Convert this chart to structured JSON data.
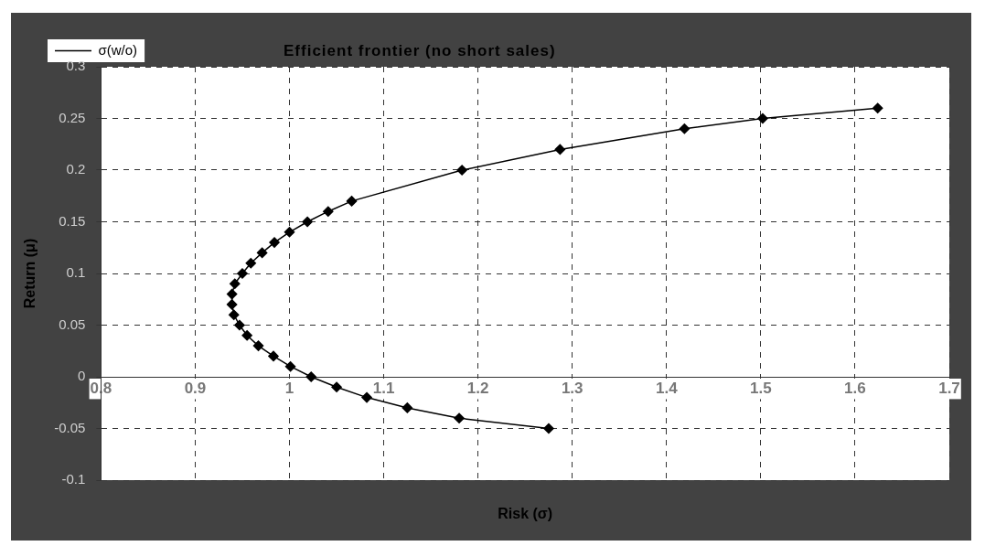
{
  "chart_data": {
    "type": "line",
    "title": "Efficient frontier (no short sales)",
    "xlabel": "Risk (σ)",
    "ylabel": "Return (μ)",
    "series": [
      {
        "name": "σ(w/o)",
        "color": "#000000",
        "x": [
          1.275,
          1.18,
          1.125,
          1.082,
          1.05,
          1.023,
          1.001,
          0.983,
          0.967,
          0.955,
          0.947,
          0.941,
          0.939,
          0.939,
          0.942,
          0.95,
          0.959,
          0.971,
          0.984,
          1.0,
          1.019,
          1.041,
          1.066,
          1.183,
          1.287,
          1.419,
          1.502,
          1.624
        ],
        "values": [
          -0.05,
          -0.04,
          -0.03,
          -0.02,
          -0.01,
          0.0,
          0.01,
          0.02,
          0.03,
          0.04,
          0.05,
          0.06,
          0.07,
          0.08,
          0.09,
          0.1,
          0.11,
          0.12,
          0.13,
          0.14,
          0.15,
          0.16,
          0.17,
          0.2,
          0.22,
          0.24,
          0.25,
          0.26
        ]
      }
    ],
    "xlim": [
      0.8,
      1.7
    ],
    "xticks": [
      0.8,
      0.9,
      1,
      1.1,
      1.2,
      1.3,
      1.4,
      1.5,
      1.6,
      1.7
    ],
    "ylim": [
      -0.1,
      0.3
    ],
    "yticks": [
      -0.1,
      -0.05,
      0,
      0.05,
      0.1,
      0.15,
      0.2,
      0.25,
      0.3
    ],
    "grid": true,
    "legend": "top left",
    "marker": "diamond",
    "line_style": "solid"
  }
}
